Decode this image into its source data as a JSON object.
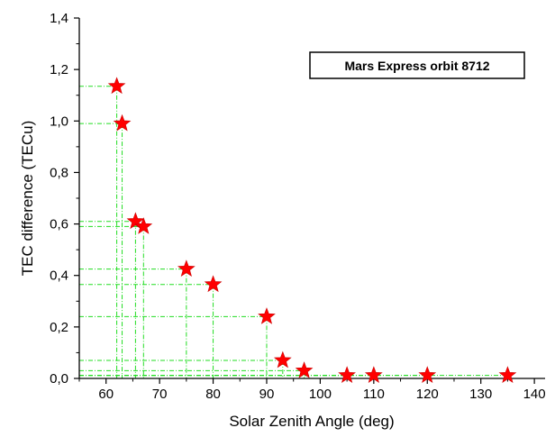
{
  "chart_data": {
    "type": "scatter",
    "title": "",
    "xlabel": "Solar Zenith Angle (deg)",
    "ylabel": "TEC difference (TECu)",
    "xlim": [
      55,
      142
    ],
    "ylim": [
      0,
      1.4
    ],
    "x_ticks": [
      "60",
      "70",
      "80",
      "90",
      "100",
      "110",
      "120",
      "130",
      "140"
    ],
    "y_ticks": [
      "0,0",
      "0,2",
      "0,4",
      "0,6",
      "0,8",
      "1,0",
      "1,2",
      "1,4"
    ],
    "legend_label": "Mars Express orbit 8712",
    "legend_position": "top-right",
    "grid": false,
    "drop_lines": true,
    "marker": "star",
    "marker_color": "#ff0000",
    "guide_color": "#22dd22",
    "x": [
      62,
      63,
      65.5,
      67,
      75,
      80,
      90,
      93,
      97,
      105,
      110,
      120,
      135
    ],
    "y": [
      1.135,
      0.99,
      0.61,
      0.59,
      0.425,
      0.365,
      0.24,
      0.07,
      0.03,
      0.012,
      0.012,
      0.012,
      0.012
    ]
  }
}
